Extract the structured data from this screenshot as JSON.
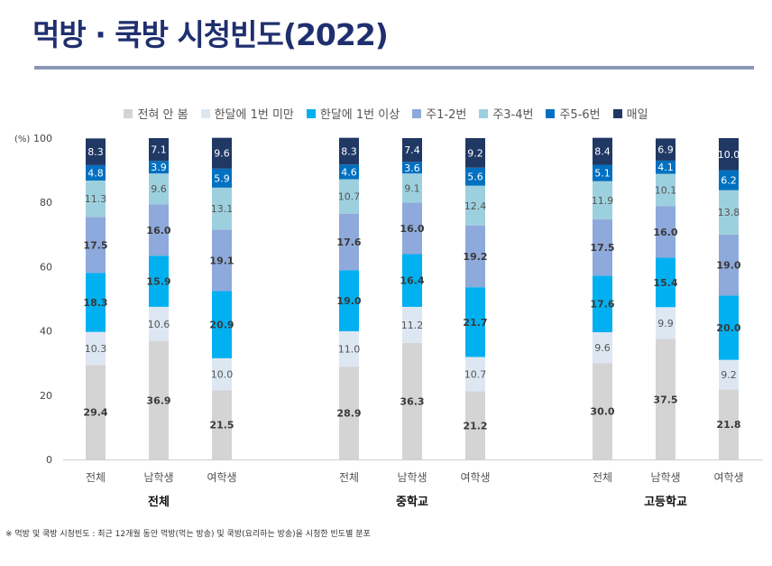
{
  "title": "먹방 · 쿡방 시청빈도(2022)",
  "footnote": "※ 먹방 및 쿡방 시청빈도 : 최근 12개월 동안 먹방(먹는 방송) 및 쿡방(요리하는 방송)을 시청한 빈도별 분포",
  "chart_data": {
    "type": "bar",
    "stacked": true,
    "ylabel": "(%)",
    "ylim": [
      0,
      100
    ],
    "yticks": [
      0,
      20,
      40,
      60,
      80,
      100
    ],
    "grid": false,
    "legend_position": "top",
    "groups": [
      "전체",
      "중학교",
      "고등학교"
    ],
    "categories": [
      "전체",
      "남학생",
      "여학생",
      "전체",
      "남학생",
      "여학생",
      "전체",
      "남학생",
      "여학생"
    ],
    "series": [
      {
        "name": "전혀 안 봄",
        "color": "#d4d4d4",
        "label_color": "#3a3a3a",
        "bold": true,
        "values": [
          29.4,
          36.9,
          21.5,
          28.9,
          36.3,
          21.2,
          30.0,
          37.5,
          21.8
        ]
      },
      {
        "name": "한달에 1번 미만",
        "color": "#dde7f2",
        "label_color": "#555555",
        "bold": false,
        "values": [
          10.3,
          10.6,
          10.0,
          11.0,
          11.2,
          10.7,
          9.6,
          9.9,
          9.2
        ]
      },
      {
        "name": "한달에 1번 이상",
        "color": "#00b0f0",
        "label_color": "#3a3a3a",
        "bold": true,
        "values": [
          18.3,
          15.9,
          20.9,
          19.0,
          16.4,
          21.7,
          17.6,
          15.4,
          20.0
        ]
      },
      {
        "name": "주1-2번",
        "color": "#8ea9db",
        "label_color": "#3a3a3a",
        "bold": true,
        "values": [
          17.5,
          16.0,
          19.1,
          17.6,
          16.0,
          19.2,
          17.5,
          16.0,
          19.0
        ]
      },
      {
        "name": "주3-4번",
        "color": "#9dd0df",
        "label_color": "#555555",
        "bold": false,
        "values": [
          11.3,
          9.6,
          13.1,
          10.7,
          9.1,
          12.4,
          11.9,
          10.1,
          13.8
        ]
      },
      {
        "name": "주5-6번",
        "color": "#0070c0",
        "label_color": "#ffffff",
        "bold": false,
        "values": [
          4.8,
          3.9,
          5.9,
          4.6,
          3.6,
          5.6,
          5.1,
          4.1,
          6.2
        ]
      },
      {
        "name": "매일",
        "color": "#203864",
        "label_color": "#ffffff",
        "bold": false,
        "values": [
          8.3,
          7.1,
          9.6,
          8.3,
          7.4,
          9.2,
          8.4,
          6.9,
          10.0
        ]
      }
    ]
  }
}
